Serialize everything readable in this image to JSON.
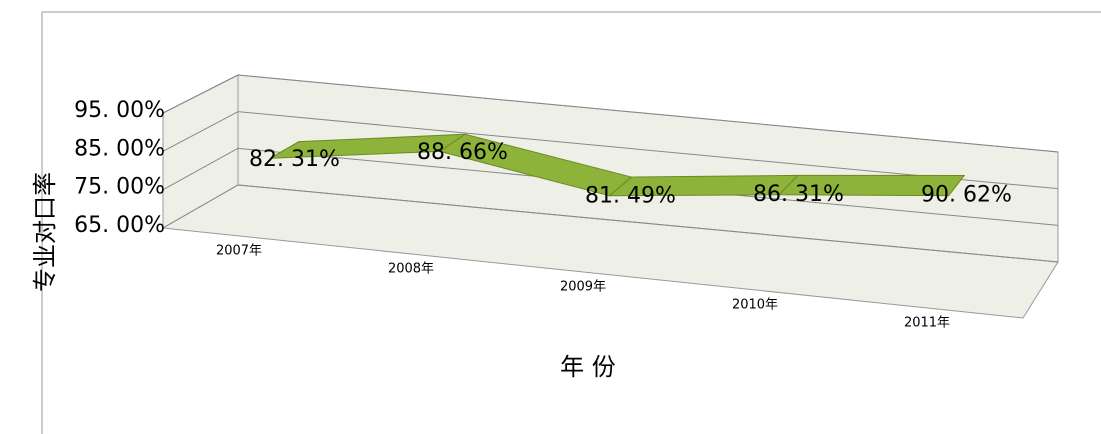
{
  "chart_data": {
    "type": "line3d",
    "y_label": "专业对口率",
    "x_label": "年 份",
    "categories": [
      "2007年",
      "2008年",
      "2009年",
      "2010年",
      "2011年"
    ],
    "values": [
      82.31,
      88.66,
      81.49,
      86.31,
      90.62
    ],
    "value_labels": [
      "82. 31%",
      "88. 66%",
      "81. 49%",
      "86. 31%",
      "90. 62%"
    ],
    "color": "#8db33a",
    "ylim": [
      65,
      95
    ],
    "yticks": [
      {
        "value": 65,
        "label": "65. 00%"
      },
      {
        "value": 75,
        "label": "75. 00%"
      },
      {
        "value": 85,
        "label": "85. 00%"
      },
      {
        "value": 95,
        "label": "95. 00%"
      }
    ],
    "grid": true
  }
}
